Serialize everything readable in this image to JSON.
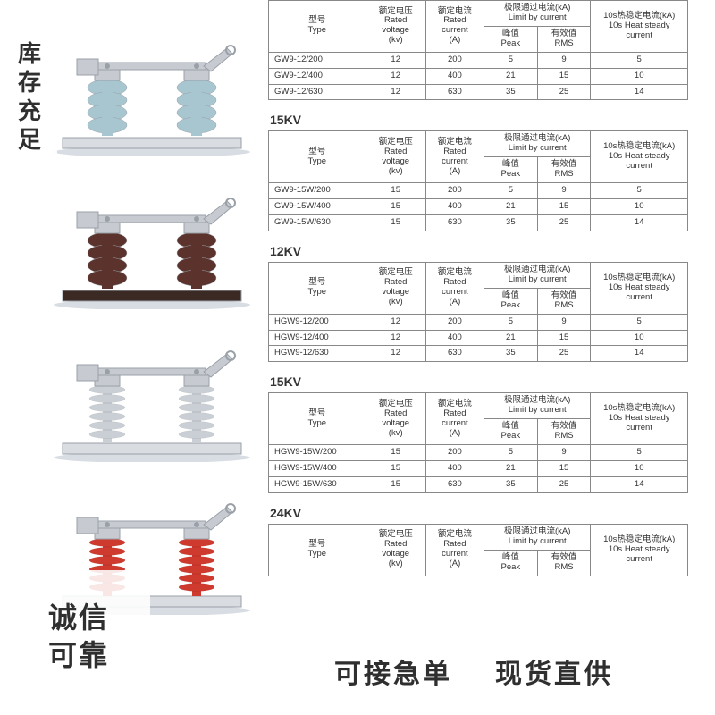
{
  "badges": {
    "top_left": "库存充足",
    "bottom_left_line1": "诚信",
    "bottom_left_line2": "可靠",
    "bottom_right_1": "可接急单",
    "bottom_right_2": "现货直供"
  },
  "headers": {
    "type": "型号\nType",
    "voltage": "额定电压\nRated\nvoltage\n(kv)",
    "current": "额定电流\nRated\ncurrent\n(A)",
    "limit": "极限通过电流(kA)\nLimit by current",
    "peak": "峰值\nPeak",
    "rms": "有效值\nRMS",
    "heat": "10s热稳定电流(kA)\n10s Heat steady\ncurrent"
  },
  "blocks": [
    {
      "title": "",
      "rows": [
        {
          "type": "GW9-12/200",
          "v": "12",
          "a": "200",
          "peak": "5",
          "rms": "9",
          "heat": "5"
        },
        {
          "type": "GW9-12/400",
          "v": "12",
          "a": "400",
          "peak": "21",
          "rms": "15",
          "heat": "10"
        },
        {
          "type": "GW9-12/630",
          "v": "12",
          "a": "630",
          "peak": "35",
          "rms": "25",
          "heat": "14"
        }
      ]
    },
    {
      "title": "15KV",
      "rows": [
        {
          "type": "GW9-15W/200",
          "v": "15",
          "a": "200",
          "peak": "5",
          "rms": "9",
          "heat": "5"
        },
        {
          "type": "GW9-15W/400",
          "v": "15",
          "a": "400",
          "peak": "21",
          "rms": "15",
          "heat": "10"
        },
        {
          "type": "GW9-15W/630",
          "v": "15",
          "a": "630",
          "peak": "35",
          "rms": "25",
          "heat": "14"
        }
      ]
    },
    {
      "title": "12KV",
      "rows": [
        {
          "type": "HGW9-12/200",
          "v": "12",
          "a": "200",
          "peak": "5",
          "rms": "9",
          "heat": "5"
        },
        {
          "type": "HGW9-12/400",
          "v": "12",
          "a": "400",
          "peak": "21",
          "rms": "15",
          "heat": "10"
        },
        {
          "type": "HGW9-12/630",
          "v": "12",
          "a": "630",
          "peak": "35",
          "rms": "25",
          "heat": "14"
        }
      ]
    },
    {
      "title": "15KV",
      "rows": [
        {
          "type": "HGW9-15W/200",
          "v": "15",
          "a": "200",
          "peak": "5",
          "rms": "9",
          "heat": "5"
        },
        {
          "type": "HGW9-15W/400",
          "v": "15",
          "a": "400",
          "peak": "21",
          "rms": "15",
          "heat": "10"
        },
        {
          "type": "HGW9-15W/630",
          "v": "15",
          "a": "630",
          "peak": "35",
          "rms": "25",
          "heat": "14"
        }
      ]
    },
    {
      "title": "24KV",
      "rows": []
    }
  ],
  "products": [
    {
      "insulator_color": "#a7c6cf",
      "insulator_style": "porcelain",
      "base_color": "#d9dce0"
    },
    {
      "insulator_color": "#5b332c",
      "insulator_style": "porcelain",
      "base_color": "#3b2a24"
    },
    {
      "insulator_color": "#c9cfd5",
      "insulator_style": "polymer",
      "base_color": "#d9dce0"
    },
    {
      "insulator_color": "#cf3a2e",
      "insulator_style": "polymer",
      "base_color": "#d9dce0"
    }
  ],
  "colors": {
    "metal": "#c7cbd1",
    "metal_dark": "#9aa0a8",
    "shadow": "#d8dde3"
  }
}
